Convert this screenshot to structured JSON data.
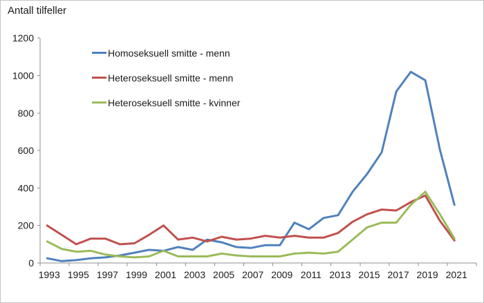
{
  "chart_data": {
    "type": "line",
    "title": "Antall tilfeller",
    "x": [
      1993,
      1994,
      1995,
      1996,
      1997,
      1998,
      1999,
      2000,
      2001,
      2002,
      2003,
      2004,
      2005,
      2006,
      2007,
      2008,
      2009,
      2010,
      2011,
      2012,
      2013,
      2014,
      2015,
      2016,
      2017,
      2018,
      2019,
      2020,
      2021
    ],
    "x_tick_labels": [
      "1993",
      "1995",
      "1997",
      "1999",
      "2001",
      "2003",
      "2005",
      "2007",
      "2009",
      "2011",
      "2013",
      "2015",
      "2017",
      "2019",
      "2021"
    ],
    "yticks": [
      0,
      200,
      400,
      600,
      800,
      1000,
      1200
    ],
    "ylim": [
      0,
      1200
    ],
    "grid": false,
    "legend_position": "inside-top-left",
    "axis_color": "#8c8c8c",
    "text_color": "#1a1a1a",
    "series": [
      {
        "name": "Homoseksuell smitte - menn",
        "color": "#4F81BD",
        "values": [
          25,
          10,
          15,
          25,
          30,
          40,
          55,
          70,
          65,
          85,
          70,
          125,
          110,
          85,
          80,
          95,
          95,
          215,
          180,
          240,
          255,
          380,
          475,
          590,
          915,
          1020,
          975,
          605,
          310
        ]
      },
      {
        "name": "Heteroseksuell smitte - menn",
        "color": "#C0504D",
        "values": [
          200,
          150,
          100,
          130,
          130,
          100,
          105,
          150,
          200,
          125,
          135,
          115,
          140,
          125,
          130,
          145,
          135,
          145,
          135,
          135,
          160,
          220,
          260,
          285,
          280,
          325,
          360,
          225,
          120
        ]
      },
      {
        "name": "Heteroseksuell smitte - kvinner",
        "color": "#9BBB59",
        "values": [
          115,
          75,
          60,
          65,
          45,
          35,
          30,
          35,
          65,
          35,
          35,
          35,
          50,
          40,
          35,
          35,
          35,
          50,
          55,
          50,
          60,
          125,
          190,
          215,
          215,
          310,
          380,
          260,
          130
        ]
      }
    ]
  }
}
